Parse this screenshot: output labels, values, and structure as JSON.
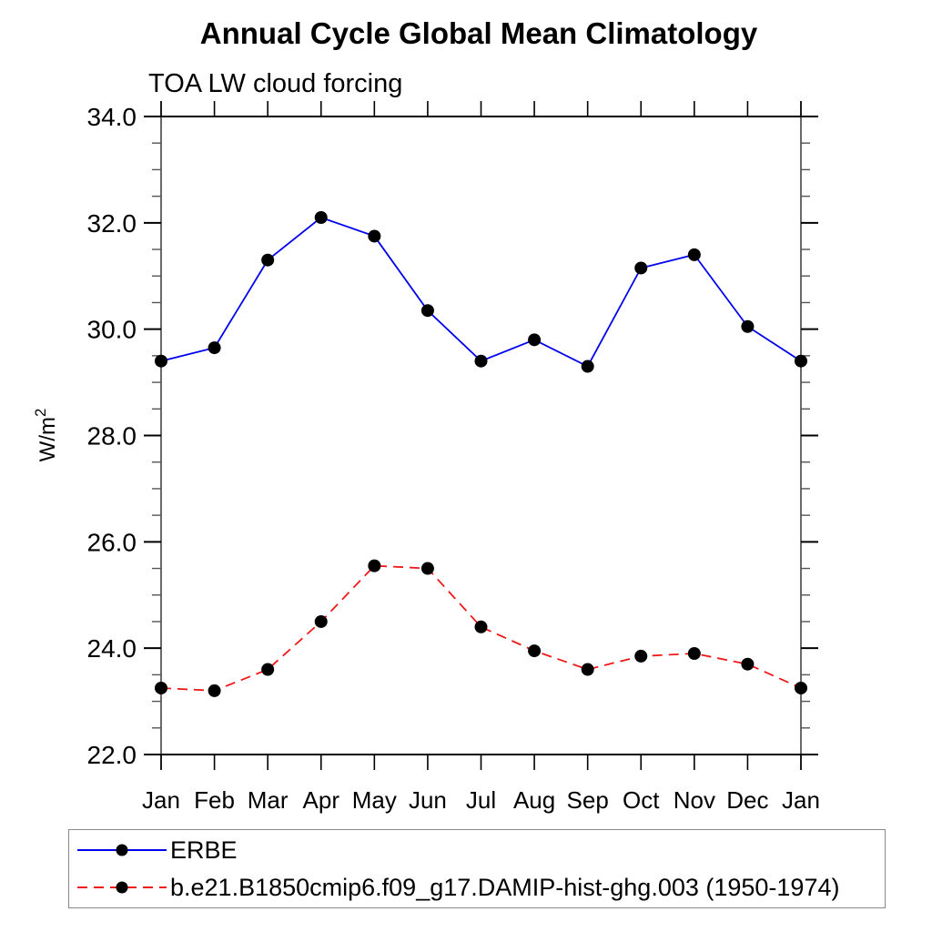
{
  "title": "Annual Cycle Global Mean Climatology",
  "subtitle": "TOA LW cloud forcing",
  "chart_data": {
    "type": "line",
    "categories": [
      "Jan",
      "Feb",
      "Mar",
      "Apr",
      "May",
      "Jun",
      "Jul",
      "Aug",
      "Sep",
      "Oct",
      "Nov",
      "Dec",
      "Jan"
    ],
    "series": [
      {
        "name": "ERBE",
        "color": "#0000ee",
        "line_style": "solid",
        "marker": "filled-black-circle",
        "values": [
          29.4,
          29.65,
          31.3,
          32.1,
          31.75,
          30.35,
          29.4,
          29.8,
          29.3,
          31.15,
          31.4,
          30.05,
          29.4
        ]
      },
      {
        "name": "b.e21.B1850cmip6.f09_g17.DAMIP-hist-ghg.003 (1950-1974)",
        "color": "#f01818",
        "line_style": "dashed",
        "marker": "filled-black-circle",
        "values": [
          23.25,
          23.2,
          23.6,
          24.5,
          25.55,
          25.5,
          24.4,
          23.95,
          23.6,
          23.85,
          23.9,
          23.7,
          23.25
        ]
      }
    ],
    "xlabel": "",
    "ylabel": "W/m²",
    "ylim": [
      22.0,
      34.0
    ],
    "ytick_labels": [
      "22.0",
      "24.0",
      "26.0",
      "28.0",
      "30.0",
      "32.0",
      "34.0"
    ],
    "ytick_major_interval": 2.0,
    "ytick_minor_interval": 0.5,
    "grid": false,
    "legend_position": "bottom-left",
    "axis_color": "#000000",
    "marker_color": "#000000"
  }
}
